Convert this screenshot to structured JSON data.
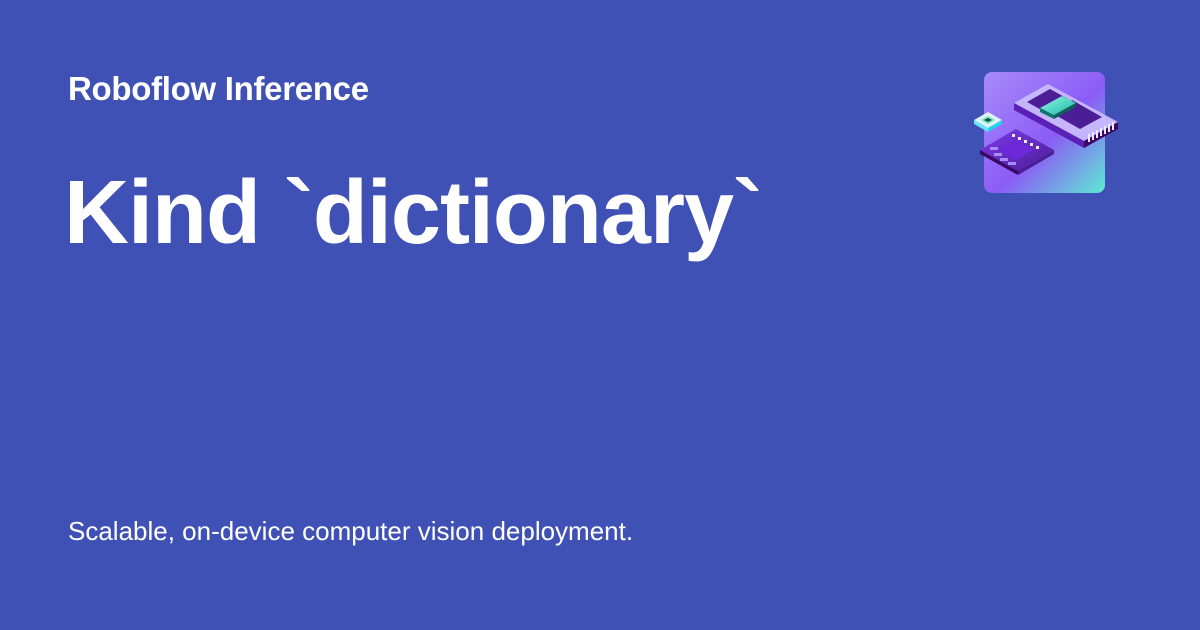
{
  "header": {
    "site_name": "Roboflow Inference"
  },
  "main": {
    "title": "Kind `dictionary`",
    "tagline": "Scalable, on-device computer vision deployment."
  },
  "logo": {
    "icon": "inference-logo-icon"
  },
  "colors": {
    "background": "#3f51b5",
    "text": "#ffffff",
    "logo_gradient_start": "#a855f7",
    "logo_gradient_end": "#5eead4",
    "chip_purple": "#5b21b6",
    "chip_teal": "#2dd4bf"
  }
}
